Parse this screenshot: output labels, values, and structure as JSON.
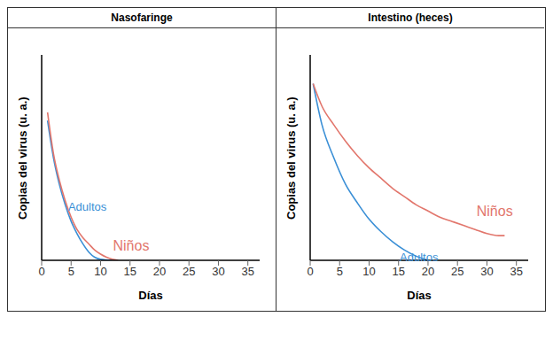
{
  "chart_data": [
    {
      "type": "line",
      "title": "Nasofaringe",
      "x_label": "Días",
      "y_label": "Copias del virus (u. a.)",
      "xlim": [
        0,
        37
      ],
      "xticks": [
        0,
        5,
        10,
        15,
        20,
        25,
        30,
        35
      ],
      "ylim": [
        0,
        100
      ],
      "tick_labels": "x",
      "grid": false,
      "series": [
        {
          "name": "Adultos",
          "color": "#3a8fd6",
          "x": [
            1,
            2,
            3,
            4,
            5,
            6,
            7,
            8,
            9,
            10,
            12
          ],
          "values": [
            68,
            50,
            37,
            27,
            19,
            13,
            8,
            4,
            1.5,
            0.5,
            0
          ]
        },
        {
          "name": "Niños",
          "color": "#e2766c",
          "x": [
            1,
            2,
            3,
            4,
            5,
            6,
            7,
            8,
            9,
            10,
            11,
            12,
            13
          ],
          "values": [
            72,
            52,
            39,
            29,
            21,
            15,
            11,
            8,
            5,
            3,
            1.5,
            0.5,
            0
          ]
        }
      ]
    },
    {
      "type": "line",
      "title": "Intestino (heces)",
      "x_label": "Días",
      "y_label": "Copias del virus (u. a.)",
      "xlim": [
        0,
        37
      ],
      "xticks": [
        0,
        5,
        10,
        15,
        20,
        25,
        30,
        35
      ],
      "ylim": [
        0,
        100
      ],
      "tick_labels": "x",
      "grid": false,
      "series": [
        {
          "name": "Adultos",
          "color": "#3a8fd6",
          "x": [
            0.5,
            2,
            4,
            6,
            8,
            10,
            12,
            14,
            16,
            18,
            20
          ],
          "values": [
            86,
            66,
            50,
            37,
            28,
            20,
            14,
            9,
            5,
            2,
            0
          ]
        },
        {
          "name": "Niños",
          "color": "#e2766c",
          "x": [
            0.5,
            2,
            4,
            6,
            8,
            10,
            12,
            14,
            16,
            18,
            20,
            22,
            24,
            26,
            28,
            30,
            32,
            33
          ],
          "values": [
            86,
            75,
            66,
            58,
            51,
            45,
            40,
            35,
            31,
            27,
            24,
            21,
            19,
            17,
            15,
            13,
            12,
            12
          ]
        }
      ]
    }
  ]
}
